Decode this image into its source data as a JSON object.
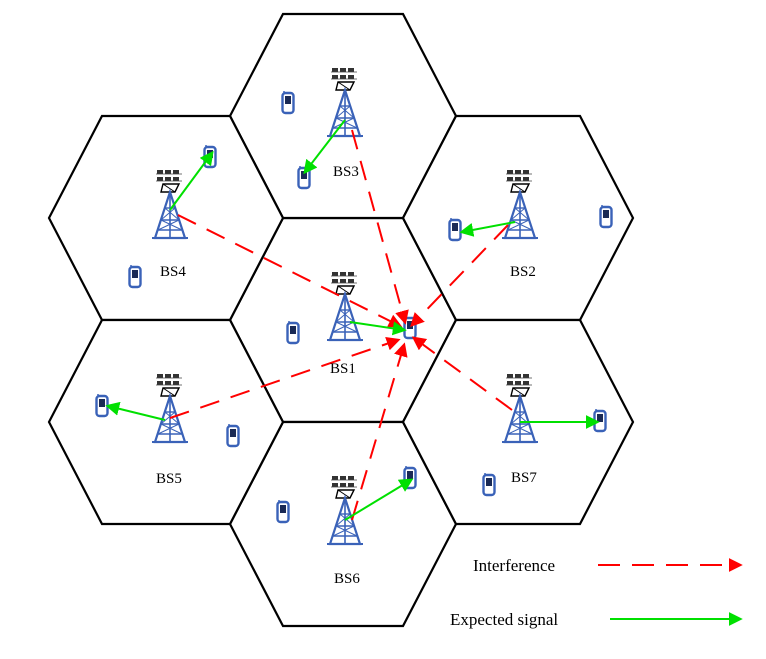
{
  "colors": {
    "interference": "#ff0000",
    "expected_signal": "#00e000",
    "tower": "#4169b8",
    "phone": "#3a62b8",
    "cell_border": "#000000"
  },
  "stations": [
    {
      "id": "BS1",
      "label": "BS1"
    },
    {
      "id": "BS2",
      "label": "BS2"
    },
    {
      "id": "BS3",
      "label": "BS3"
    },
    {
      "id": "BS4",
      "label": "BS4"
    },
    {
      "id": "BS5",
      "label": "BS5"
    },
    {
      "id": "BS6",
      "label": "BS6"
    },
    {
      "id": "BS7",
      "label": "BS7"
    }
  ],
  "legend": {
    "interference": "Interference",
    "expected_signal": "Expected signal"
  },
  "icons": {
    "base_station": "cell-tower-icon",
    "user": "mobile-phone-icon"
  }
}
